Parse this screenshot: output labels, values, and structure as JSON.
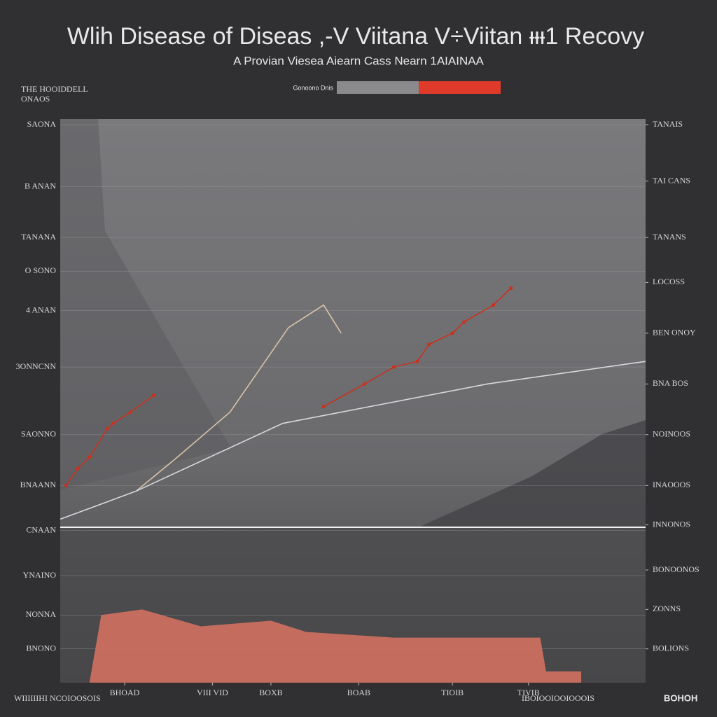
{
  "chart_data": {
    "type": "line",
    "title": "Wlih Disease of Diseas ,-V Viitana V÷Viitan ᵻᵻᵻ1 Recovy",
    "subtitle": "A Provian Viesea Aiearn Cass Nearn 1AIAINAA",
    "legend": {
      "label": "Gonoono Dnis",
      "colors": [
        "#8a8a8c",
        "#e03a2a"
      ]
    },
    "annotations": [
      "THE HOOIDDELL",
      "ONAOS",
      "WIIIIIIHI NCOIOOSOIS",
      "IBOIOOIOOIOOOIS",
      "BOHOH"
    ],
    "xlim": [
      0,
      100
    ],
    "xticks": [
      {
        "value": 11,
        "label": "BHOAD"
      },
      {
        "value": 26,
        "label": "VIII VID"
      },
      {
        "value": 36,
        "label": "BOXB"
      },
      {
        "value": 51,
        "label": "BOAB"
      },
      {
        "value": 67,
        "label": "TIOIB"
      },
      {
        "value": 80,
        "label": "TIVIB"
      }
    ],
    "ylim": [
      0,
      100
    ],
    "yticks": [
      {
        "value": 99,
        "label": "SAONA"
      },
      {
        "value": 88,
        "label": "B ANAN"
      },
      {
        "value": 79,
        "label": "TANANA"
      },
      {
        "value": 73,
        "label": "O SONO"
      },
      {
        "value": 66,
        "label": "4 ANAN"
      },
      {
        "value": 56,
        "label": "3ONNCNN"
      },
      {
        "value": 44,
        "label": "SAONNO"
      },
      {
        "value": 35,
        "label": "BNAANN"
      },
      {
        "value": 27,
        "label": "CNAAN"
      },
      {
        "value": 19,
        "label": "YNAINO"
      },
      {
        "value": 12,
        "label": "NONNA"
      },
      {
        "value": 6,
        "label": "BNONO"
      }
    ],
    "y2lim": [
      0,
      100
    ],
    "y2ticks": [
      {
        "value": 99,
        "label": "TANAIS"
      },
      {
        "value": 89,
        "label": "TAI CANS"
      },
      {
        "value": 79,
        "label": "TANANS"
      },
      {
        "value": 71,
        "label": "LOCOSS"
      },
      {
        "value": 62,
        "label": "BEN ONOY"
      },
      {
        "value": 53,
        "label": "BNA BOS"
      },
      {
        "value": 44,
        "label": "NOINOOS"
      },
      {
        "value": 35,
        "label": "INAOOOS"
      },
      {
        "value": 28,
        "label": "INNONOS"
      },
      {
        "value": 20,
        "label": "BONOONOS"
      },
      {
        "value": 13,
        "label": "ZONNS"
      },
      {
        "value": 6,
        "label": "BOLIONS"
      }
    ],
    "grid": true,
    "series": [
      {
        "color": "#d9c2a8",
        "markers": false,
        "x": [
          13,
          20,
          29,
          39,
          45,
          48
        ],
        "values": [
          34,
          40,
          48,
          63,
          67,
          62
        ]
      },
      {
        "color": "#d8d8dc",
        "markers": false,
        "x": [
          0,
          13,
          38,
          73,
          100
        ],
        "values": [
          29,
          34,
          46,
          53,
          57
        ]
      },
      {
        "color": "#c8321f",
        "markers": true,
        "x": [
          1,
          3,
          5,
          8,
          9,
          12,
          16,
          42,
          45,
          52,
          57,
          61,
          63,
          67,
          69,
          74,
          77
        ],
        "values": [
          35,
          38,
          40,
          45,
          46,
          48,
          51,
          null,
          49,
          53,
          56,
          57,
          60,
          62,
          64,
          67,
          70
        ]
      },
      {
        "color": "#d2705f",
        "area": true,
        "x": [
          5,
          7,
          14,
          24,
          36,
          42,
          57,
          82,
          83,
          89,
          89
        ],
        "values": [
          0,
          12,
          13,
          10,
          11,
          9,
          8,
          8,
          2,
          2,
          0
        ]
      }
    ]
  }
}
